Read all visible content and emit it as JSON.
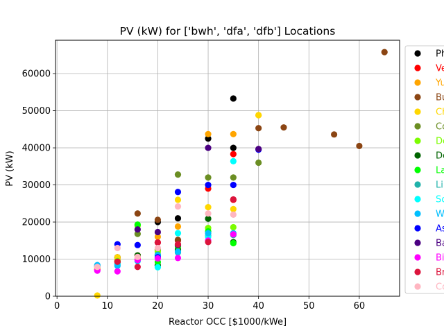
{
  "chart_data": {
    "type": "scatter",
    "title": "PV (kW) for ['bwh', 'dfa', 'dfb'] Locations",
    "xlabel": "Reactor OCC [$1000/kWe]",
    "ylabel": "PV (kW)",
    "xlim": [
      -0.3,
      68
    ],
    "ylim": [
      0,
      69000
    ],
    "xticks": [
      0,
      10,
      20,
      30,
      40,
      50,
      60
    ],
    "yticks": [
      0,
      10000,
      20000,
      30000,
      40000,
      50000,
      60000
    ],
    "grid": true,
    "legend_placement": "right, partially cut off",
    "series": [
      {
        "name": "Ph",
        "color": "#000000",
        "points": [
          [
            8,
            8000
          ],
          [
            12,
            10500
          ],
          [
            16,
            11000
          ],
          [
            20,
            20000
          ],
          [
            24,
            21000
          ],
          [
            30,
            42500
          ],
          [
            35,
            53300
          ],
          [
            35,
            40000
          ]
        ]
      },
      {
        "name": "Ve",
        "color": "#ff0000",
        "points": [
          [
            8,
            7200
          ],
          [
            12,
            9500
          ],
          [
            16,
            10000
          ],
          [
            20,
            14500
          ],
          [
            24,
            15000
          ],
          [
            30,
            29000
          ],
          [
            35,
            38300
          ],
          [
            35,
            26000
          ]
        ]
      },
      {
        "name": "Yu",
        "color": "#ffa500",
        "points": [
          [
            8,
            7500
          ],
          [
            12,
            10000
          ],
          [
            16,
            10500
          ],
          [
            20,
            16000
          ],
          [
            24,
            18800
          ],
          [
            30,
            43700
          ],
          [
            35,
            43700
          ],
          [
            40,
            48800
          ]
        ]
      },
      {
        "name": "Bu",
        "color": "#8b4513",
        "points": [
          [
            12,
            10500
          ],
          [
            16,
            22300
          ],
          [
            20,
            20600
          ],
          [
            24,
            15200
          ],
          [
            40,
            45300
          ],
          [
            45,
            45500
          ],
          [
            55,
            43600
          ],
          [
            60,
            40500
          ],
          [
            65,
            65800
          ]
        ]
      },
      {
        "name": "Ch",
        "color": "#ffd700",
        "points": [
          [
            8,
            200
          ],
          [
            12,
            10500
          ],
          [
            16,
            11000
          ],
          [
            20,
            12500
          ],
          [
            24,
            26000
          ],
          [
            30,
            24000
          ],
          [
            35,
            23500
          ],
          [
            40,
            48800
          ]
        ]
      },
      {
        "name": "Co",
        "color": "#6b8e23",
        "points": [
          [
            16,
            16800
          ],
          [
            20,
            12500
          ],
          [
            24,
            32800
          ],
          [
            30,
            32000
          ],
          [
            35,
            32000
          ],
          [
            40,
            36000
          ]
        ]
      },
      {
        "name": "De",
        "color": "#7cfc00",
        "points": [
          [
            12,
            9500
          ],
          [
            16,
            19000
          ],
          [
            20,
            12000
          ],
          [
            24,
            13000
          ],
          [
            30,
            18400
          ],
          [
            35,
            18600
          ]
        ]
      },
      {
        "name": "De",
        "color": "#006400",
        "points": [
          [
            12,
            9200
          ],
          [
            16,
            11000
          ],
          [
            20,
            8300
          ],
          [
            24,
            12500
          ],
          [
            30,
            20900
          ],
          [
            35,
            14600
          ]
        ]
      },
      {
        "name": "La",
        "color": "#00ff00",
        "points": [
          [
            16,
            19300
          ],
          [
            20,
            9200
          ],
          [
            24,
            13500
          ],
          [
            30,
            17500
          ],
          [
            35,
            14300
          ]
        ]
      },
      {
        "name": "Li",
        "color": "#20b2aa",
        "points": [
          [
            8,
            8200
          ],
          [
            12,
            8800
          ],
          [
            20,
            11200
          ],
          [
            24,
            11800
          ],
          [
            30,
            16300
          ],
          [
            35,
            16500
          ]
        ]
      },
      {
        "name": "Sc",
        "color": "#00ffff",
        "points": [
          [
            8,
            8000
          ],
          [
            12,
            8600
          ],
          [
            20,
            7800
          ],
          [
            24,
            17000
          ],
          [
            30,
            16000
          ],
          [
            35,
            36400
          ]
        ]
      },
      {
        "name": "W",
        "color": "#00bfff",
        "points": [
          [
            8,
            8400
          ],
          [
            12,
            8200
          ],
          [
            16,
            9500
          ],
          [
            20,
            11000
          ],
          [
            24,
            12000
          ],
          [
            30,
            17000
          ],
          [
            35,
            17000
          ]
        ]
      },
      {
        "name": "As",
        "color": "#0000ff",
        "points": [
          [
            12,
            14000
          ],
          [
            16,
            13800
          ],
          [
            20,
            10500
          ],
          [
            24,
            28100
          ],
          [
            30,
            30000
          ],
          [
            35,
            30000
          ],
          [
            40,
            39500
          ]
        ]
      },
      {
        "name": "Ba",
        "color": "#4b0082",
        "points": [
          [
            16,
            18000
          ],
          [
            20,
            17300
          ],
          [
            24,
            13800
          ],
          [
            30,
            40000
          ],
          [
            40,
            39700
          ]
        ]
      },
      {
        "name": "Bi",
        "color": "#ff00ff",
        "points": [
          [
            8,
            6900
          ],
          [
            12,
            6700
          ],
          [
            16,
            9800
          ],
          [
            20,
            10200
          ],
          [
            24,
            10300
          ],
          [
            30,
            15000
          ],
          [
            35,
            16700
          ]
        ]
      },
      {
        "name": "Br",
        "color": "#dc143c",
        "points": [
          [
            12,
            9300
          ],
          [
            16,
            7900
          ],
          [
            20,
            14500
          ],
          [
            24,
            14000
          ],
          [
            30,
            14600
          ],
          [
            35,
            26100
          ]
        ]
      },
      {
        "name": "Co",
        "color": "#ffb6c1",
        "points": [
          [
            8,
            7900
          ],
          [
            12,
            13000
          ],
          [
            16,
            10600
          ],
          [
            20,
            13000
          ],
          [
            24,
            24200
          ],
          [
            30,
            22300
          ],
          [
            35,
            22000
          ]
        ]
      }
    ]
  }
}
